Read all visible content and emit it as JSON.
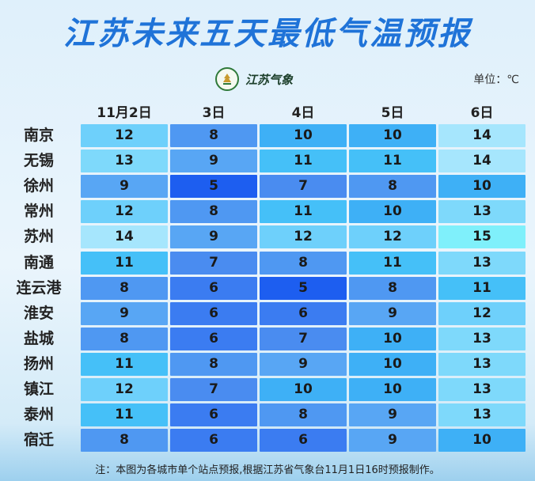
{
  "title": "江苏未来五天最低气温预报",
  "logo": {
    "text": "江苏气象"
  },
  "unit": "单位：℃",
  "note": "注：本图为各城市单个站点预报,根据江苏省气象台11月1日16时预报制作。",
  "colors": {
    "t5": "#1d5ef0",
    "t6": "#3b7cf1",
    "t7": "#4a8cf0",
    "t8": "#4f98f2",
    "t9": "#58a6f4",
    "t10": "#3eb0f6",
    "t11": "#45c0f8",
    "t12": "#6ed0fb",
    "t13": "#7ed9fb",
    "t14": "#a6e6fd",
    "t15": "#7ff0fb"
  },
  "chart_data": {
    "type": "table",
    "title": "江苏未来五天最低气温预报",
    "columns": [
      "11月2日",
      "3日",
      "4日",
      "5日",
      "6日"
    ],
    "rows": [
      {
        "city": "南京",
        "values": [
          12,
          8,
          10,
          10,
          14
        ]
      },
      {
        "city": "无锡",
        "values": [
          13,
          9,
          11,
          11,
          14
        ]
      },
      {
        "city": "徐州",
        "values": [
          9,
          5,
          7,
          8,
          10
        ]
      },
      {
        "city": "常州",
        "values": [
          12,
          8,
          11,
          10,
          13
        ]
      },
      {
        "city": "苏州",
        "values": [
          14,
          9,
          12,
          12,
          15
        ]
      },
      {
        "city": "南通",
        "values": [
          11,
          7,
          8,
          11,
          13
        ]
      },
      {
        "city": "连云港",
        "values": [
          8,
          6,
          5,
          8,
          11
        ]
      },
      {
        "city": "淮安",
        "values": [
          9,
          6,
          6,
          9,
          12
        ]
      },
      {
        "city": "盐城",
        "values": [
          8,
          6,
          7,
          10,
          13
        ]
      },
      {
        "city": "扬州",
        "values": [
          11,
          8,
          9,
          10,
          13
        ]
      },
      {
        "city": "镇江",
        "values": [
          12,
          7,
          10,
          10,
          13
        ]
      },
      {
        "city": "泰州",
        "values": [
          11,
          6,
          8,
          9,
          13
        ]
      },
      {
        "city": "宿迁",
        "values": [
          8,
          6,
          6,
          9,
          10
        ]
      }
    ],
    "unit": "℃"
  }
}
